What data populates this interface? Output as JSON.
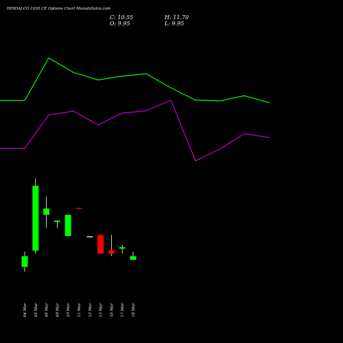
{
  "header": {
    "title": "HINDALCO 1030  CE Options  Chart MunafaSutra.com",
    "close": "C: 10.55",
    "open": "O: 9.95",
    "high": "H: 11.70",
    "low": "L: 9.95"
  },
  "colors": {
    "background": "#000000",
    "up": "#00ff00",
    "down": "#ff0000",
    "flat": "#ffffff",
    "wick": "#ffffff",
    "line_green": "#00ff00",
    "line_magenta": "#cc00cc",
    "text": "#ffffff"
  },
  "chart_data": [
    {
      "type": "line",
      "series": [
        {
          "name": "",
          "color": "#00ff00",
          "values": [
            146.5,
            146.5,
            84.5,
            105.5,
            116.5,
            111,
            107.5,
            128,
            146,
            147,
            139.5,
            150
          ]
        },
        {
          "name": "",
          "color": "#cc00cc",
          "values": [
            216.5,
            216.5,
            167.5,
            162,
            182,
            165,
            161.5,
            146,
            234.5,
            217,
            195,
            200.5
          ]
        }
      ]
    },
    {
      "type": "candlestick",
      "categories": [
        "04 Mar",
        "05 Mar",
        "06 Mar",
        "09 Mar",
        "10 Mar",
        "11 Mar",
        "12 Mar",
        "13 Mar",
        "16 Mar",
        "17 Mar",
        "18 Mar"
      ],
      "candles": [
        {
          "open": 9.2,
          "high": 9.95,
          "low": 8.97,
          "close": 9.73,
          "dir": "up"
        },
        {
          "open": 10.0,
          "high": 13.55,
          "low": 9.86,
          "close": 13.19,
          "dir": "up"
        },
        {
          "open": 11.76,
          "high": 12.67,
          "low": 11.12,
          "close": 12.07,
          "dir": "up"
        },
        {
          "open": 11.41,
          "high": 11.48,
          "low": 11.12,
          "close": 11.48,
          "dir": "up"
        },
        {
          "open": 10.72,
          "high": 11.76,
          "low": 10.72,
          "close": 11.76,
          "dir": "up"
        },
        {
          "open": 12.1,
          "high": 12.1,
          "low": 12.1,
          "close": 12.1,
          "dir": "down"
        },
        {
          "open": 10.7,
          "high": 10.7,
          "low": 10.7,
          "close": 10.7,
          "dir": "flat"
        },
        {
          "open": 10.78,
          "high": 10.78,
          "low": 9.86,
          "close": 9.86,
          "dir": "down"
        },
        {
          "open": 10.02,
          "high": 10.78,
          "low": 9.73,
          "close": 9.86,
          "dir": "down"
        },
        {
          "open": 10.1,
          "high": 10.29,
          "low": 9.86,
          "close": 10.17,
          "dir": "up"
        },
        {
          "open": 9.55,
          "high": 9.95,
          "low": 9.55,
          "close": 9.73,
          "dir": "up"
        }
      ]
    }
  ]
}
